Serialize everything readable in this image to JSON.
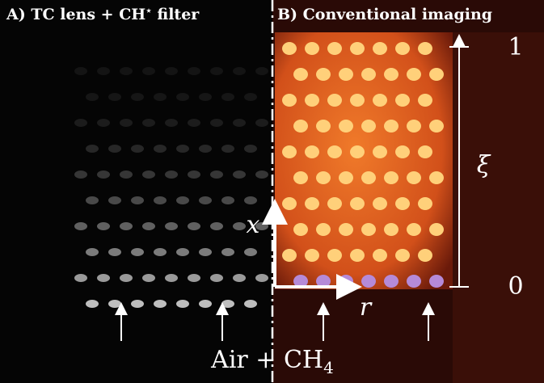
{
  "panels": {
    "a": {
      "text": "A) TC lens + CH",
      "sup": "⋆",
      "suffix": " filter"
    },
    "b": {
      "text": "B) Conventional imaging"
    }
  },
  "annotations": {
    "xi_top": "1",
    "xi_bottom": "0",
    "xi": "ξ",
    "x": "x",
    "r": "r",
    "inlet": "Air + CH",
    "inlet_sub": "4"
  }
}
